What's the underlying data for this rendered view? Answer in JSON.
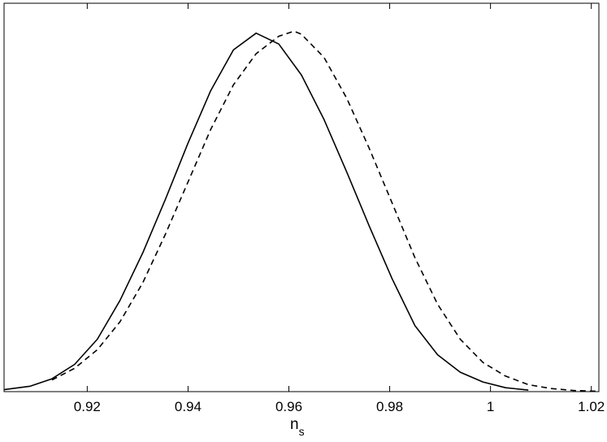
{
  "chart_data": {
    "type": "line",
    "xlabel_main": "n",
    "xlabel_sub": "s",
    "xlim": [
      0.9035,
      1.0215
    ],
    "ylim": [
      0,
      1.0
    ],
    "x_ticks": [
      0.92,
      0.94,
      0.96,
      0.98,
      1.0,
      1.02
    ],
    "x_tick_labels": [
      "0.92",
      "0.94",
      "0.96",
      "0.98",
      "1",
      "1.02"
    ],
    "y_ticks_visible": false,
    "grid": false,
    "legend": false,
    "series": [
      {
        "style": "solid",
        "color": "#000000",
        "x": [
          0.9035,
          0.9087,
          0.913,
          0.9175,
          0.922,
          0.9265,
          0.931,
          0.9355,
          0.94,
          0.9445,
          0.949,
          0.9535,
          0.958,
          0.9625,
          0.967,
          0.9715,
          0.976,
          0.9805,
          0.985,
          0.9895,
          0.994,
          0.9985,
          1.003,
          1.0075
        ],
        "y": [
          0.005,
          0.014,
          0.033,
          0.07,
          0.135,
          0.235,
          0.357,
          0.495,
          0.64,
          0.775,
          0.88,
          0.923,
          0.895,
          0.815,
          0.7,
          0.565,
          0.425,
          0.29,
          0.17,
          0.095,
          0.05,
          0.025,
          0.01,
          0.004
        ]
      },
      {
        "style": "dashed",
        "color": "#000000",
        "x": [
          0.913,
          0.9175,
          0.922,
          0.9265,
          0.931,
          0.9355,
          0.94,
          0.9445,
          0.949,
          0.9535,
          0.958,
          0.961,
          0.9625,
          0.967,
          0.9715,
          0.976,
          0.9805,
          0.985,
          0.9895,
          0.994,
          0.9985,
          1.003,
          1.0075,
          1.012,
          1.0165,
          1.021
        ],
        "y": [
          0.03,
          0.06,
          0.108,
          0.18,
          0.28,
          0.405,
          0.54,
          0.675,
          0.79,
          0.87,
          0.915,
          0.928,
          0.92,
          0.86,
          0.755,
          0.625,
          0.485,
          0.345,
          0.225,
          0.135,
          0.075,
          0.04,
          0.018,
          0.008,
          0.003,
          0.001
        ]
      }
    ]
  }
}
